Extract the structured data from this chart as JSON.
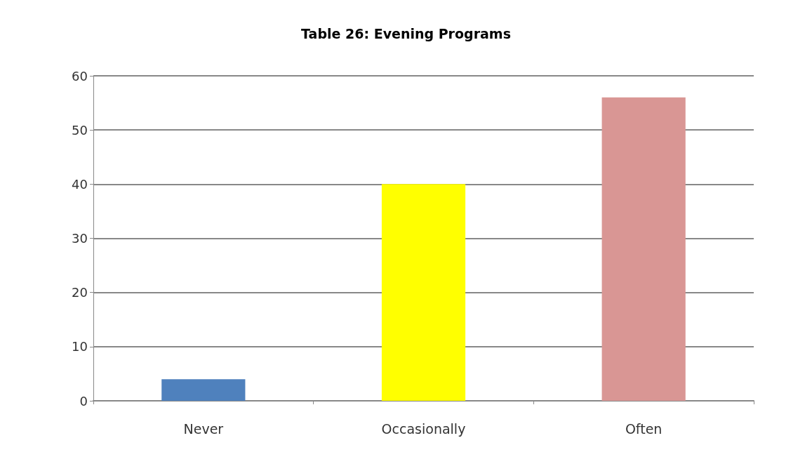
{
  "chart_data": {
    "type": "bar",
    "title": "Table 26: Evening Programs",
    "categories": [
      "Never",
      "Occasionally",
      "Often"
    ],
    "values": [
      4,
      40,
      56
    ],
    "colors": [
      "#4f81bd",
      "#ffff00",
      "#d99694"
    ],
    "ylim": [
      0,
      60
    ],
    "yticks": [
      0,
      10,
      20,
      30,
      40,
      50,
      60
    ],
    "grid": "y"
  }
}
